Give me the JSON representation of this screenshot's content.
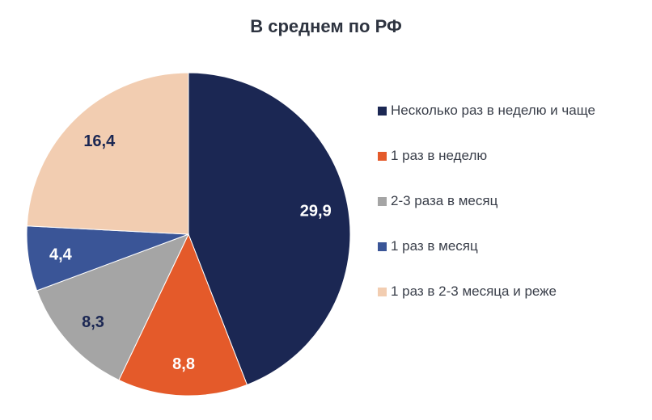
{
  "chart_data": {
    "type": "pie",
    "title": "В среднем по РФ",
    "categories": [
      "Несколько раз в неделю и чаще",
      "1 раз в неделю",
      "2-3 раза в месяц",
      "1 раз в месяц",
      "1 раз в 2-3 месяца и реже"
    ],
    "values": [
      29.9,
      8.8,
      8.3,
      4.4,
      16.4
    ],
    "labels": [
      "29,9",
      "8,8",
      "8,3",
      "4,4",
      "16,4"
    ],
    "colors": [
      "#1b2753",
      "#e45a2a",
      "#a5a5a5",
      "#3a5597",
      "#f2cdb1"
    ],
    "label_colors": [
      "#ffffff",
      "#ffffff",
      "#1b2753",
      "#ffffff",
      "#1b2753"
    ],
    "legend_position": "right"
  }
}
